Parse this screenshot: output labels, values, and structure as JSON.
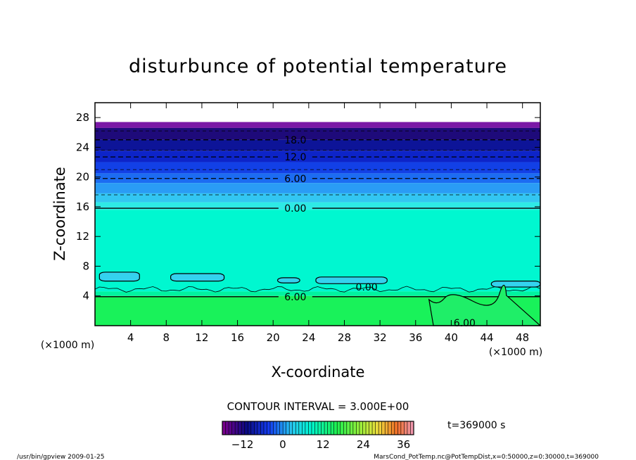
{
  "chart_data": {
    "type": "heatmap",
    "title": "disturbunce of potential temperature",
    "xlabel": "X-coordinate",
    "ylabel": "Z-coordinate",
    "x_unit": "(×1000 m)",
    "y_unit": "(×1000 m)",
    "xlim": [
      0,
      50
    ],
    "ylim": [
      0,
      30
    ],
    "x_ticks": [
      4,
      8,
      12,
      16,
      20,
      24,
      28,
      32,
      36,
      40,
      44,
      48
    ],
    "y_ticks": [
      4,
      8,
      12,
      16,
      20,
      24,
      28
    ],
    "contour_interval_text": "CONTOUR INTERVAL = 3.000E+00",
    "time_text": "t=369000 s",
    "colorbar": {
      "range": [
        -18,
        39
      ],
      "ticks": [
        -12,
        0,
        12,
        24,
        36
      ]
    },
    "filled_layers": [
      {
        "z_bottom": 26.6,
        "z_top": 27.4,
        "value": -21,
        "color": "#7a17a6"
      },
      {
        "z_bottom": 25.0,
        "z_top": 26.6,
        "value": -18,
        "color": "#1e0a7a"
      },
      {
        "z_bottom": 23.5,
        "z_top": 25.0,
        "value": -15,
        "color": "#0d1498"
      },
      {
        "z_bottom": 22.0,
        "z_top": 23.5,
        "value": -12,
        "color": "#0d24c8"
      },
      {
        "z_bottom": 20.5,
        "z_top": 22.0,
        "value": -9,
        "color": "#1240e6"
      },
      {
        "z_bottom": 19.2,
        "z_top": 20.5,
        "value": -6,
        "color": "#1c6cf2"
      },
      {
        "z_bottom": 17.8,
        "z_top": 19.2,
        "value": -4,
        "color": "#2a9cf5"
      },
      {
        "z_bottom": 16.6,
        "z_top": 17.8,
        "value": -2,
        "color": "#33c6f2"
      },
      {
        "z_bottom": 15.6,
        "z_top": 16.6,
        "value": -1,
        "color": "#2eeae6"
      },
      {
        "z_bottom": 4.6,
        "z_top": 15.6,
        "value": 0,
        "color": "#00f7d0"
      },
      {
        "z_bottom": 4.0,
        "z_top": 4.6,
        "value": 5,
        "color": "#00f3a0"
      },
      {
        "z_bottom": 0,
        "z_top": 4.0,
        "value": 7,
        "color": "#19f25a"
      }
    ],
    "contours": [
      {
        "z": 26.2,
        "value": -21,
        "style": "dashed",
        "label": ""
      },
      {
        "z": 25.0,
        "value": -18,
        "style": "dashed",
        "label": "18.0"
      },
      {
        "z": 23.6,
        "value": -15,
        "style": "dashed",
        "label": ""
      },
      {
        "z": 22.7,
        "value": -12,
        "style": "dashed",
        "label": "12.0"
      },
      {
        "z": 21.0,
        "value": -9,
        "style": "dashed",
        "label": ""
      },
      {
        "z": 19.8,
        "value": -6,
        "style": "dashed",
        "label": "6.00"
      },
      {
        "z": 17.6,
        "value": -3,
        "style": "dashed",
        "label": ""
      },
      {
        "z": 15.8,
        "value": 0,
        "style": "solid",
        "label": "0.00"
      },
      {
        "z": 3.9,
        "value": 6,
        "style": "solid",
        "label": "6.00"
      }
    ],
    "inline_labels": [
      {
        "x": 30.5,
        "z": 5.2,
        "text": "0.00"
      },
      {
        "x": 41.5,
        "z": 0.4,
        "text": "6.00"
      }
    ],
    "footer_left": "/usr/bin/gpview   2009-01-25",
    "footer_right": "MarsCond_PotTemp.nc@PotTempDist,x=0:50000,z=0:30000,t=369000"
  }
}
